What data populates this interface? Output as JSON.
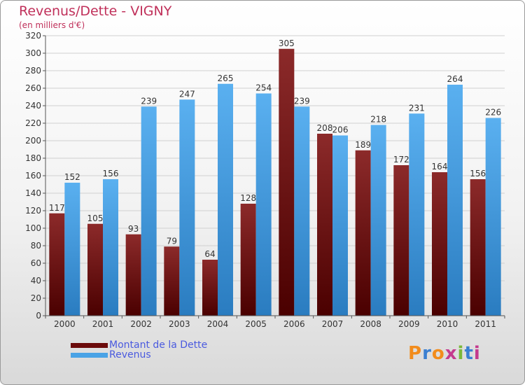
{
  "header": {
    "title": "Revenus/Dette - VIGNY",
    "subtitle": "(en milliers d'€)"
  },
  "legend": [
    {
      "label": "Montant de la Dette",
      "color": "#6b0a0a"
    },
    {
      "label": "Revenus",
      "color": "#4aa3e6"
    }
  ],
  "logo": {
    "text": "Proxiti",
    "letter_colors": [
      "#f28c1c",
      "#3a7fd1",
      "#f28c1c",
      "#c43a8e",
      "#7bb83a",
      "#3a7fd1",
      "#c43a8e"
    ]
  },
  "chart_data": {
    "type": "bar",
    "title": "Revenus/Dette - VIGNY",
    "subtitle": "(en milliers d'€)",
    "xlabel": "",
    "ylabel": "",
    "categories": [
      "2000",
      "2001",
      "2002",
      "2003",
      "2004",
      "2005",
      "2006",
      "2007",
      "2008",
      "2009",
      "2010",
      "2011"
    ],
    "series": [
      {
        "name": "Montant de la Dette",
        "color": "#6b0a0a",
        "values": [
          117,
          105,
          93,
          79,
          64,
          128,
          305,
          208,
          189,
          172,
          164,
          156
        ]
      },
      {
        "name": "Revenus",
        "color": "#4aa3e6",
        "values": [
          152,
          156,
          239,
          247,
          265,
          254,
          239,
          206,
          218,
          231,
          264,
          226
        ]
      }
    ],
    "ylim": [
      0,
      320
    ],
    "yticks": [
      0,
      20,
      40,
      60,
      80,
      100,
      120,
      140,
      160,
      180,
      200,
      220,
      240,
      260,
      280,
      300,
      320
    ],
    "grid": true,
    "legend_position": "bottom-left",
    "data_labels": true
  }
}
